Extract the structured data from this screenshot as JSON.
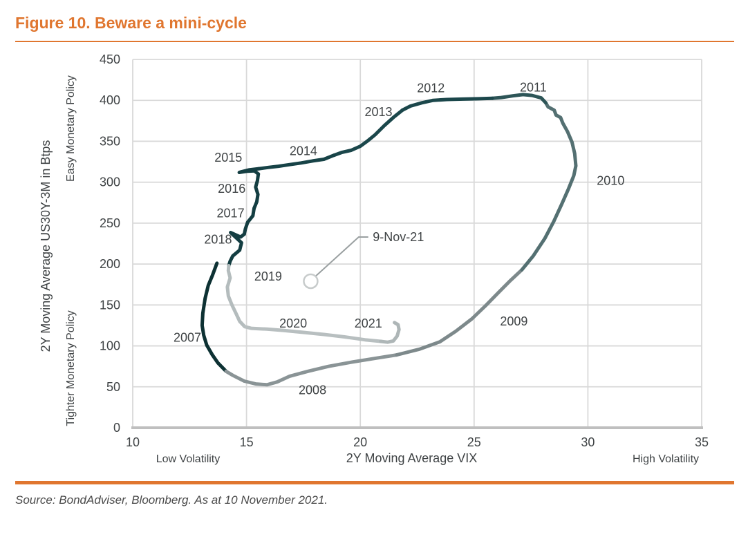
{
  "header": {
    "title": "Figure 10. Beware a mini-cycle"
  },
  "footer": {
    "source": "Source: BondAdviser, Bloomberg. As at 10 November 2021."
  },
  "colors": {
    "accent_orange": "#E0762F",
    "grid": "#D9D9D9",
    "axis": "#BFBFBF",
    "label_text": "#3F4345",
    "source_text": "#4A4A4A",
    "annotation_line": "#9AA0A1",
    "annotation_circle": "#C7CBCB"
  },
  "chart_data": {
    "type": "line",
    "title": "Figure 10. Beware a mini-cycle",
    "xlabel": "2Y Moving Average VIX",
    "ylabel": "2Y Moving Average US30Y-3M in Btps",
    "y_axis_upper_label": "Easy Monetary Policy",
    "y_axis_lower_label": "Tighter Monetary Policy",
    "x_left_label": "Low Volatility",
    "x_right_label": "High Volatility",
    "xlim": [
      10,
      35
    ],
    "ylim": [
      0,
      450
    ],
    "x_ticks": [
      10,
      15,
      20,
      25,
      30,
      35
    ],
    "y_ticks": [
      0,
      50,
      100,
      150,
      200,
      250,
      300,
      350,
      400,
      450
    ],
    "grid": true,
    "legend": "none",
    "series": [
      {
        "name": "2007",
        "color": "#0D3133",
        "points": [
          [
            13.7,
            201
          ],
          [
            13.5,
            186
          ],
          [
            13.32,
            174
          ],
          [
            13.18,
            158
          ],
          [
            13.08,
            140
          ],
          [
            13.05,
            125
          ],
          [
            13.12,
            113
          ],
          [
            13.25,
            101
          ],
          [
            13.5,
            89
          ],
          [
            13.75,
            79
          ],
          [
            14.1,
            69
          ]
        ]
      },
      {
        "name": "2008",
        "color": "#8A9496",
        "points": [
          [
            14.4,
            64
          ],
          [
            14.9,
            57
          ],
          [
            15.4,
            53.5
          ],
          [
            15.9,
            52.5
          ],
          [
            16.35,
            56
          ],
          [
            16.9,
            63
          ],
          [
            17.7,
            69
          ],
          [
            18.6,
            75
          ],
          [
            19.6,
            80
          ],
          [
            20.7,
            85
          ],
          [
            21.6,
            89
          ]
        ]
      },
      {
        "name": "2009",
        "color": "#7D898B",
        "points": [
          [
            22.6,
            96
          ],
          [
            23.5,
            105
          ],
          [
            24.2,
            118
          ],
          [
            24.9,
            133
          ],
          [
            25.5,
            149
          ],
          [
            26.1,
            166
          ],
          [
            26.6,
            180
          ],
          [
            27.1,
            193
          ]
        ]
      },
      {
        "name": "2010",
        "color": "#547072",
        "points": [
          [
            27.6,
            210
          ],
          [
            28.1,
            231
          ],
          [
            28.5,
            252
          ],
          [
            28.85,
            273
          ],
          [
            29.15,
            292
          ],
          [
            29.38,
            308
          ],
          [
            29.47,
            320
          ],
          [
            29.42,
            335
          ],
          [
            29.3,
            349
          ],
          [
            29.1,
            362
          ],
          [
            28.9,
            372
          ],
          [
            28.8,
            379
          ],
          [
            28.6,
            382
          ],
          [
            28.52,
            388
          ],
          [
            28.25,
            392
          ],
          [
            28.15,
            397
          ]
        ]
      },
      {
        "name": "2011",
        "color": "#2D5557",
        "points": [
          [
            27.95,
            403
          ],
          [
            27.55,
            406
          ],
          [
            27.15,
            407
          ],
          [
            26.7,
            405.5
          ],
          [
            26.2,
            403.5
          ],
          [
            25.8,
            402.5
          ]
        ]
      },
      {
        "name": "2012",
        "color": "#1B474B",
        "points": [
          [
            25.2,
            402
          ],
          [
            24.5,
            401.5
          ],
          [
            23.8,
            401
          ],
          [
            23.2,
            400
          ],
          [
            22.7,
            397
          ],
          [
            22.2,
            393
          ],
          [
            21.85,
            388
          ]
        ]
      },
      {
        "name": "2013",
        "color": "#1B474B",
        "points": [
          [
            21.45,
            379
          ],
          [
            21.05,
            369
          ],
          [
            20.65,
            358
          ],
          [
            20.3,
            350
          ],
          [
            20.0,
            344
          ],
          [
            19.6,
            339
          ],
          [
            19.2,
            336.5
          ],
          [
            18.85,
            333
          ]
        ]
      },
      {
        "name": "2014",
        "color": "#174347",
        "points": [
          [
            18.4,
            328
          ],
          [
            17.9,
            326
          ],
          [
            17.4,
            323.5
          ],
          [
            16.9,
            321.5
          ],
          [
            16.4,
            319.5
          ],
          [
            15.95,
            318
          ],
          [
            15.55,
            316.5
          ]
        ]
      },
      {
        "name": "2015",
        "color": "#143E42",
        "points": [
          [
            15.1,
            315
          ],
          [
            14.78,
            312.8
          ],
          [
            14.68,
            312
          ],
          [
            15.05,
            313.5
          ],
          [
            15.35,
            313.8
          ],
          [
            15.52,
            310
          ]
        ]
      },
      {
        "name": "2016",
        "color": "#143E42",
        "points": [
          [
            15.48,
            302
          ],
          [
            15.4,
            294
          ],
          [
            15.5,
            285
          ],
          [
            15.45,
            276
          ],
          [
            15.33,
            268
          ]
        ]
      },
      {
        "name": "2017",
        "color": "#143E42",
        "points": [
          [
            15.28,
            259
          ],
          [
            15.05,
            251
          ],
          [
            14.95,
            243
          ],
          [
            14.9,
            236.5
          ]
        ]
      },
      {
        "name": "2018",
        "color": "#143E42",
        "points": [
          [
            14.74,
            233
          ],
          [
            14.3,
            238.5
          ],
          [
            14.78,
            226
          ],
          [
            14.7,
            217
          ],
          [
            14.4,
            210
          ],
          [
            14.28,
            203.5
          ],
          [
            14.22,
            198
          ]
        ]
      },
      {
        "name": "2019",
        "color": "#B4BCBD",
        "points": [
          [
            14.2,
            192
          ],
          [
            14.28,
            183
          ],
          [
            14.16,
            172
          ],
          [
            14.2,
            161
          ],
          [
            14.36,
            150
          ],
          [
            14.55,
            139
          ],
          [
            14.7,
            130
          ],
          [
            14.92,
            123.5
          ]
        ]
      },
      {
        "name": "2020",
        "color": "#B8BFC0",
        "points": [
          [
            15.2,
            121.5
          ],
          [
            15.9,
            120.5
          ],
          [
            16.6,
            119
          ],
          [
            17.5,
            116.5
          ],
          [
            18.4,
            114
          ],
          [
            19.3,
            111
          ],
          [
            20.2,
            107.5
          ],
          [
            20.9,
            105.5
          ]
        ]
      },
      {
        "name": "2021",
        "color": "#AEB6B7",
        "points": [
          [
            21.2,
            104.5
          ],
          [
            21.45,
            106
          ],
          [
            21.62,
            112
          ],
          [
            21.7,
            120
          ],
          [
            21.66,
            126
          ],
          [
            21.5,
            128.5
          ]
        ]
      }
    ],
    "year_labels": [
      {
        "text": "2007",
        "x": 12.4,
        "y": 110
      },
      {
        "text": "2008",
        "x": 17.9,
        "y": 46
      },
      {
        "text": "2009",
        "x": 26.75,
        "y": 130
      },
      {
        "text": "2010",
        "x": 31.0,
        "y": 302
      },
      {
        "text": "2011",
        "x": 27.6,
        "y": 416
      },
      {
        "text": "2012",
        "x": 23.1,
        "y": 415
      },
      {
        "text": "2013",
        "x": 20.8,
        "y": 386
      },
      {
        "text": "2014",
        "x": 17.5,
        "y": 338
      },
      {
        "text": "2015",
        "x": 14.2,
        "y": 330
      },
      {
        "text": "2016",
        "x": 14.35,
        "y": 292
      },
      {
        "text": "2017",
        "x": 14.3,
        "y": 262
      },
      {
        "text": "2018",
        "x": 13.75,
        "y": 230
      },
      {
        "text": "2019",
        "x": 15.95,
        "y": 185
      },
      {
        "text": "2020",
        "x": 17.05,
        "y": 127.5
      },
      {
        "text": "2021",
        "x": 20.35,
        "y": 127.5
      }
    ],
    "annotation": {
      "text": "9-Nov-21",
      "marker": {
        "x": 17.82,
        "y": 179,
        "radius_px": 10
      },
      "leader": [
        [
          18.05,
          185.5
        ],
        [
          19.93,
          233
        ],
        [
          20.35,
          233
        ]
      ],
      "text_pos": {
        "x": 20.55,
        "y": 233
      }
    }
  }
}
